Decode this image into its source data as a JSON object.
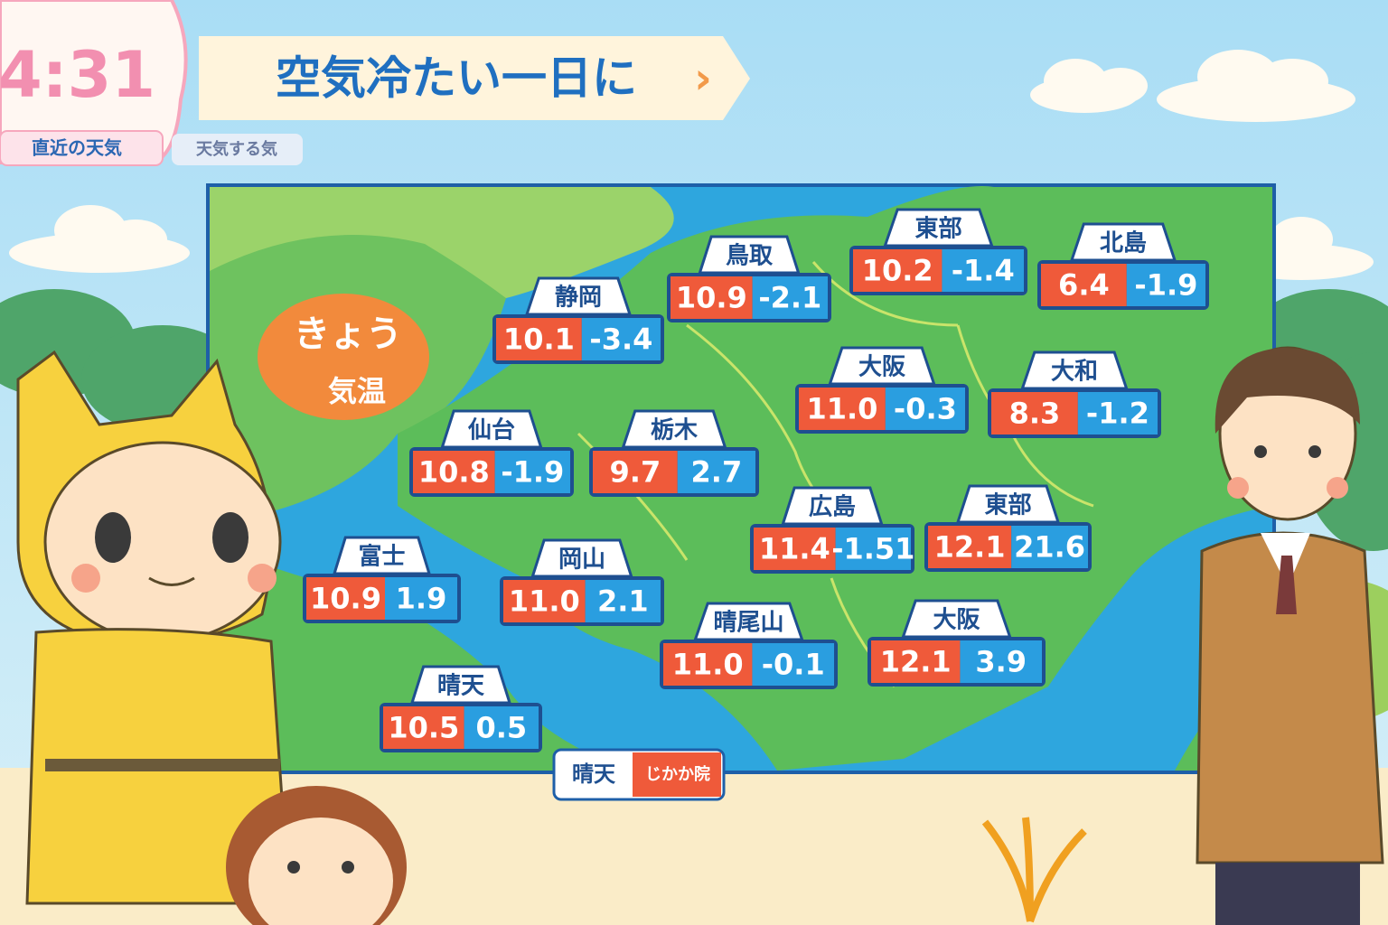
{
  "header": {
    "clock": "4:31",
    "clock_caption": "直近の天気",
    "tag": "天気する気",
    "headline": "空気冷たい一日に",
    "arrow": "›"
  },
  "badge": {
    "line1": "きょう",
    "line2": "気温"
  },
  "cities": [
    {
      "name": "鳥取",
      "high": "10.9",
      "low": "-2.1"
    },
    {
      "name": "東部",
      "high": "10.2",
      "low": "-1.4"
    },
    {
      "name": "北島",
      "high": "6.4",
      "low": "-1.9"
    },
    {
      "name": "静岡",
      "high": "10.1",
      "low": "-3.4"
    },
    {
      "name": "大阪",
      "high": "11.0",
      "low": "-0.3"
    },
    {
      "name": "大和",
      "high": "8.3",
      "low": "-1.2"
    },
    {
      "name": "仙台",
      "high": "10.8",
      "low": "-1.9"
    },
    {
      "name": "栃木",
      "high": "9.7",
      "low": "2.7"
    },
    {
      "name": "広島",
      "high": "11.4",
      "low": "-1.51"
    },
    {
      "name": "東部",
      "high": "12.1",
      "low": "21.6"
    },
    {
      "name": "富士",
      "high": "10.9",
      "low": "1.9"
    },
    {
      "name": "岡山",
      "high": "11.0",
      "low": "2.1"
    },
    {
      "name": "晴尾山",
      "high": "11.0",
      "low": "-0.1"
    },
    {
      "name": "大阪",
      "high": "12.1",
      "low": "3.9"
    },
    {
      "name": "晴天",
      "high": "10.5",
      "low": "0.5"
    }
  ],
  "legend": {
    "left": "晴天",
    "right": "じかか院"
  }
}
